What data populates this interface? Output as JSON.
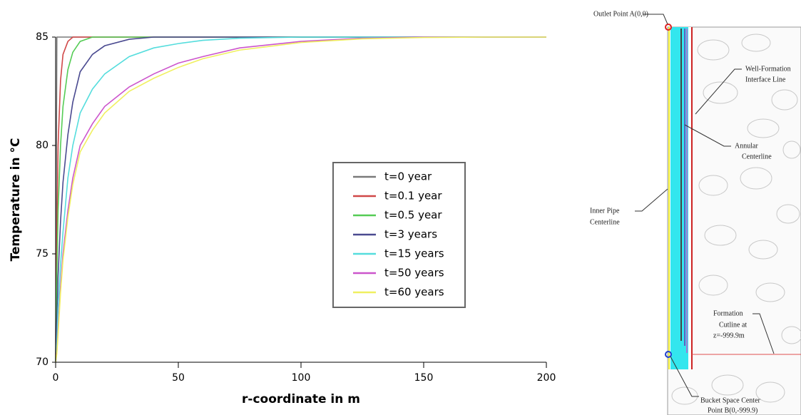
{
  "chart_data": {
    "type": "line",
    "xlabel": "r-coordinate in m",
    "ylabel": "Temperature in °C",
    "x": [
      0,
      0.5,
      1,
      2,
      3,
      5,
      7,
      10,
      15,
      20,
      30,
      40,
      50,
      60,
      75,
      100,
      125,
      150,
      175,
      200
    ],
    "series": [
      {
        "name": "t=0 year",
        "color": "#7a7a7a",
        "values": [
          70,
          85,
          85,
          85,
          85,
          85,
          85,
          85,
          85,
          85,
          85,
          85,
          85,
          85,
          85,
          85,
          85,
          85,
          85,
          85
        ]
      },
      {
        "name": "t=0.1 year",
        "color": "#d04848",
        "values": [
          70,
          76,
          80,
          83,
          84.2,
          84.8,
          85,
          85,
          85,
          85,
          85,
          85,
          85,
          85,
          85,
          85,
          85,
          85,
          85,
          85
        ]
      },
      {
        "name": "t=0.5 year",
        "color": "#55cc55",
        "values": [
          70,
          74,
          77,
          80,
          81.8,
          83.5,
          84.3,
          84.8,
          85,
          85,
          85,
          85,
          85,
          85,
          85,
          85,
          85,
          85,
          85,
          85
        ]
      },
      {
        "name": "t=3 years",
        "color": "#4a4a90",
        "values": [
          70,
          72,
          74,
          76.5,
          78.3,
          80.5,
          82,
          83.4,
          84.2,
          84.6,
          84.9,
          85,
          85,
          85,
          85,
          85,
          85,
          85,
          85,
          85
        ]
      },
      {
        "name": "t=15 years",
        "color": "#55dddd",
        "values": [
          70,
          71,
          72.5,
          74.5,
          76,
          78.5,
          80,
          81.5,
          82.6,
          83.3,
          84.1,
          84.5,
          84.7,
          84.85,
          84.95,
          85,
          85,
          85,
          85,
          85
        ]
      },
      {
        "name": "t=50 years",
        "color": "#cc55cc",
        "values": [
          70,
          70.5,
          71.5,
          73.5,
          75,
          77,
          78.5,
          80,
          81,
          81.8,
          82.7,
          83.3,
          83.8,
          84.1,
          84.5,
          84.8,
          84.95,
          85,
          85,
          85
        ]
      },
      {
        "name": "t=60 years",
        "color": "#f0f060",
        "values": [
          70,
          70.4,
          71.3,
          73.2,
          74.7,
          76.7,
          78.2,
          79.7,
          80.7,
          81.5,
          82.5,
          83.1,
          83.6,
          84,
          84.4,
          84.75,
          84.92,
          84.98,
          85,
          85
        ]
      }
    ],
    "xlim": [
      0,
      200
    ],
    "xticks": [
      0,
      50,
      100,
      150,
      200
    ],
    "ylim": [
      70,
      85
    ],
    "yticks": [
      70,
      75,
      80,
      85
    ],
    "grid": false,
    "legend": "center-right"
  },
  "diagram": {
    "outlet": "Outlet Point A(0,0)",
    "interface": [
      "Well-Formation",
      "Interface Line"
    ],
    "annular": [
      "Annular",
      "Centerline"
    ],
    "inner": [
      "Inner Pipe",
      "Centerline"
    ],
    "cutline": [
      "Formation",
      "Cutline at",
      "z=-999.9m"
    ],
    "bucket": [
      "Bucket Space Center",
      "Point B(0,-999.9)"
    ]
  }
}
